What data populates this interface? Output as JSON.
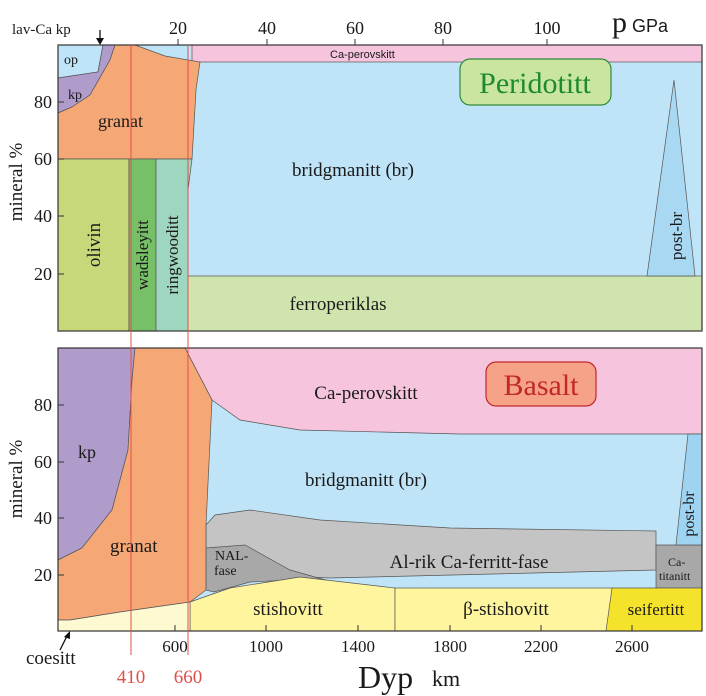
{
  "top_axis": {
    "label_left": "lav-Ca kp",
    "ticks": [
      "20",
      "40",
      "60",
      "80",
      "100"
    ],
    "unit_symbol": "p",
    "unit": "GPa"
  },
  "y_axis": {
    "label": "mineral %",
    "ticks": [
      "20",
      "40",
      "60",
      "80"
    ]
  },
  "bottom_axis": {
    "ticks": [
      "600",
      "1000",
      "1400",
      "1800",
      "2200",
      "2600"
    ],
    "label": "Dyp",
    "unit": "km",
    "markers": [
      "410",
      "660"
    ],
    "marker_color": "#e0504a"
  },
  "peridotite": {
    "title": "Peridotitt",
    "title_color": "#1e8a2e",
    "title_fill": "#c9e5a0",
    "phases": {
      "op": "op",
      "kp": "kp",
      "granat": "granat",
      "ca_perovskitt": "Ca-perovskitt",
      "olivin": "olivin",
      "wadsleyitt": "wadsleyitt",
      "ringwooditt": "ringwooditt",
      "bridgmanitt": "bridgmanitt (br)",
      "ferroperiklas": "ferroperiklas",
      "post_br": "post-br"
    }
  },
  "basalt": {
    "title": "Basalt",
    "title_color": "#c0282a",
    "title_fill": "#f6a287",
    "phases": {
      "kp": "kp",
      "granat": "granat",
      "ca_perovskitt": "Ca-perovskitt",
      "bridgmanitt": "bridgmanitt (br)",
      "post_br": "post-br",
      "nal_1": "NAL-",
      "nal_2": "fase",
      "al_rik": "Al-rik Ca-ferritt-fase",
      "ca_tit_1": "Ca-",
      "ca_tit_2": "titanitt",
      "stishovitt": "stishovitt",
      "beta_stishovitt": "β-stishovitt",
      "seifertitt": "seifertitt",
      "coesitt": "coesitt"
    }
  },
  "colors": {
    "blue": "#bfe3f7",
    "purple": "#b09ccb",
    "orange": "#f5a875",
    "pink": "#f7c4de",
    "olive": "#c6d97a",
    "green": "#78c067",
    "teal": "#9fd6bf",
    "ferro": "#cfe5ad",
    "gray": "#c4c4c4",
    "darkgray": "#a8a8a8",
    "yellow": "#fef59e",
    "gold": "#f4e32a"
  }
}
